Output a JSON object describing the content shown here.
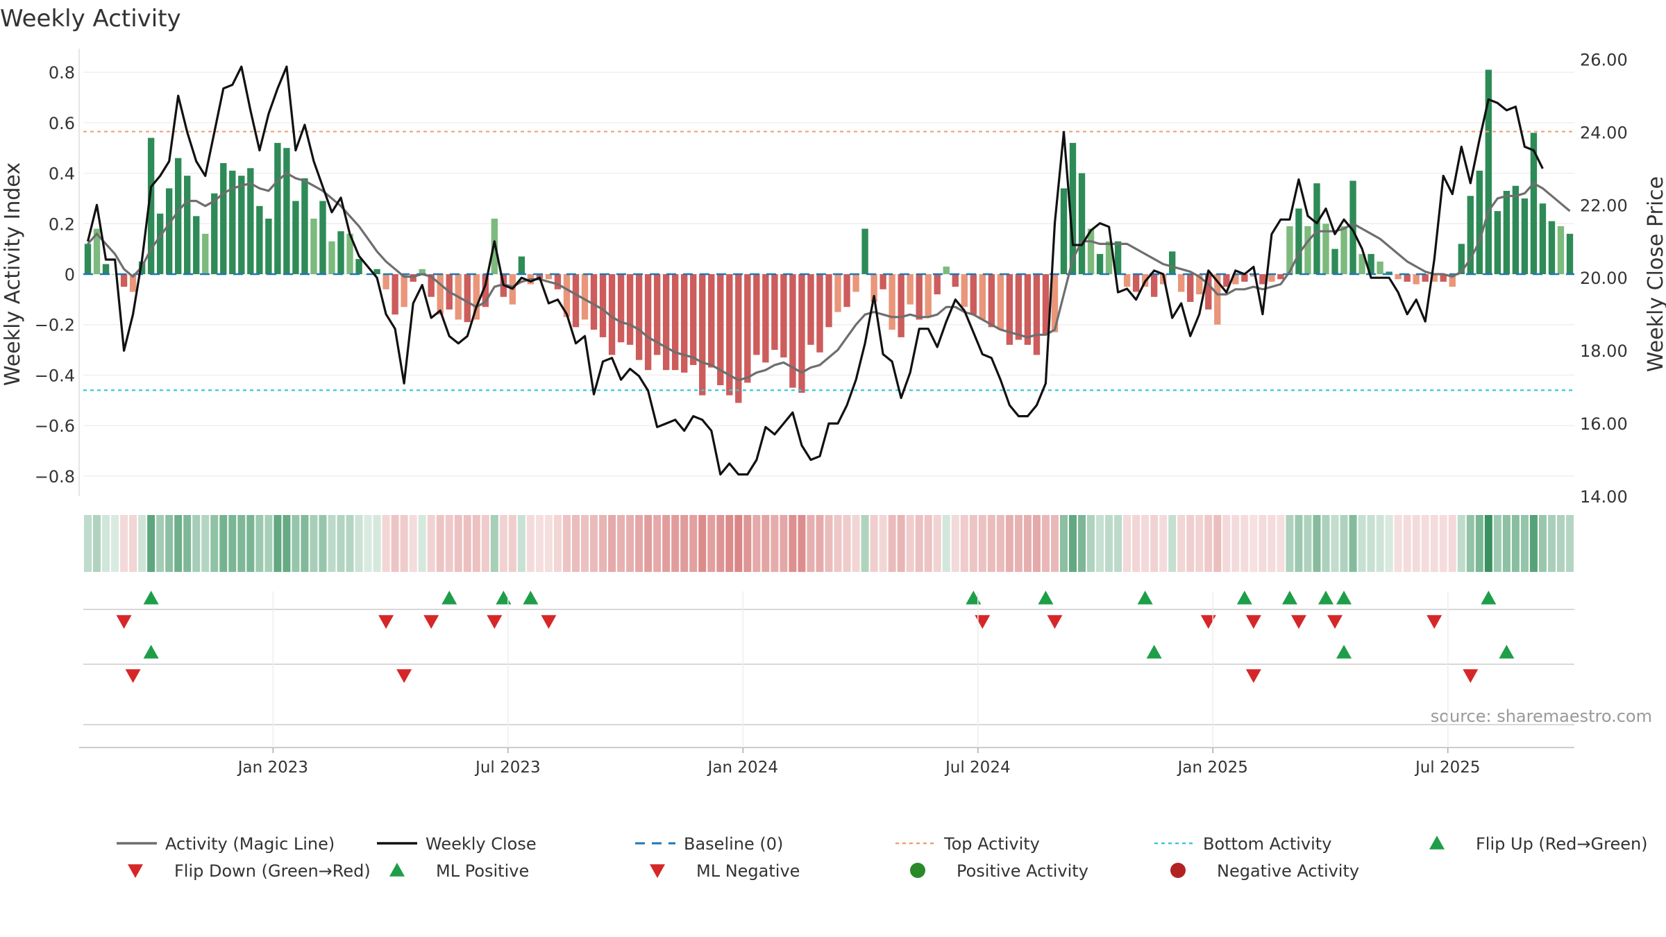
{
  "chart_data": {
    "type": "bar",
    "title": "Weekly Activity",
    "ylabel_left": "Weekly Activity Index",
    "ylabel_right": "Weekly Close Price",
    "ylim_left": [
      -0.88,
      0.88
    ],
    "ylim_right": [
      14,
      26.2
    ],
    "left_ticks": [
      {
        "v": 0.8,
        "label": "0.8"
      },
      {
        "v": 0.6,
        "label": "0.6"
      },
      {
        "v": 0.4,
        "label": "0.4"
      },
      {
        "v": 0.2,
        "label": "0.2"
      },
      {
        "v": 0,
        "label": "0"
      },
      {
        "v": -0.2,
        "label": "−0.2"
      },
      {
        "v": -0.4,
        "label": "−0.4"
      },
      {
        "v": -0.6,
        "label": "−0.6"
      },
      {
        "v": -0.8,
        "label": "−0.8"
      }
    ],
    "right_ticks": [
      {
        "v": 26,
        "label": "26.00"
      },
      {
        "v": 24,
        "label": "24.00"
      },
      {
        "v": 22,
        "label": "22.00"
      },
      {
        "v": 20,
        "label": "20.00"
      },
      {
        "v": 18,
        "label": "18.00"
      },
      {
        "v": 16,
        "label": "16.00"
      },
      {
        "v": 14,
        "label": "14.00"
      }
    ],
    "x_ticks": [
      {
        "week": 21,
        "label": "Jan 2023"
      },
      {
        "week": 47,
        "label": "Jul 2023"
      },
      {
        "week": 73,
        "label": "Jan 2024"
      },
      {
        "week": 99,
        "label": "Jul 2024"
      },
      {
        "week": 125,
        "label": "Jan 2025"
      },
      {
        "week": 151,
        "label": "Jul 2025"
      }
    ],
    "top_activity": 0.565,
    "bottom_activity": -0.46,
    "source": "source: sharemaestro.com",
    "activity": [
      0.12,
      0.18,
      0.04,
      0,
      -0.05,
      -0.07,
      0.05,
      0.54,
      0.24,
      0.34,
      0.46,
      0.39,
      0.23,
      0.16,
      0.32,
      0.44,
      0.41,
      0.39,
      0.42,
      0.27,
      0.22,
      0.52,
      0.5,
      0.29,
      0.38,
      0.22,
      0.29,
      0.13,
      0.17,
      0.16,
      0.06,
      0,
      0.02,
      -0.06,
      -0.16,
      -0.13,
      -0.03,
      0.02,
      -0.09,
      -0.16,
      -0.14,
      -0.18,
      -0.19,
      -0.18,
      -0.13,
      0.22,
      -0.09,
      -0.12,
      0.07,
      -0.04,
      -0.02,
      -0.02,
      -0.06,
      -0.17,
      -0.21,
      -0.18,
      -0.22,
      -0.25,
      -0.32,
      -0.27,
      -0.28,
      -0.34,
      -0.38,
      -0.32,
      -0.38,
      -0.38,
      -0.39,
      -0.36,
      -0.48,
      -0.37,
      -0.44,
      -0.48,
      -0.51,
      -0.43,
      -0.32,
      -0.35,
      -0.3,
      -0.33,
      -0.45,
      -0.47,
      -0.28,
      -0.31,
      -0.21,
      -0.15,
      -0.13,
      -0.07,
      0.18,
      -0.11,
      -0.06,
      -0.22,
      -0.25,
      -0.12,
      -0.18,
      -0.17,
      -0.08,
      0.03,
      -0.05,
      -0.13,
      -0.16,
      -0.18,
      -0.21,
      -0.22,
      -0.28,
      -0.26,
      -0.28,
      -0.32,
      -0.24,
      -0.23,
      0.34,
      0.52,
      0.4,
      0.18,
      0.08,
      0.13,
      0.13,
      -0.05,
      -0.07,
      -0.05,
      -0.09,
      -0.04,
      0.09,
      -0.07,
      -0.11,
      -0.08,
      -0.14,
      -0.2,
      -0.05,
      -0.04,
      -0.03,
      -0.01,
      -0.04,
      -0.03,
      -0.02,
      0.19,
      0.26,
      0.19,
      0.36,
      0.2,
      0.1,
      0.19,
      0.37,
      0.08,
      0.08,
      0.05,
      0.01,
      -0.02,
      -0.03,
      -0.04,
      -0.03,
      -0.03,
      -0.03,
      -0.05,
      0.12,
      0.31,
      0.41,
      0.81,
      0.25,
      0.33,
      0.35,
      0.3,
      0.56,
      0.28,
      0.21,
      0.19,
      0.16
    ],
    "series": [
      {
        "name": "Activity (Magic Line)",
        "values": [
          0.12,
          0.16,
          0.12,
          0.08,
          0.02,
          -0.01,
          0.03,
          0.1,
          0.15,
          0.2,
          0.25,
          0.29,
          0.29,
          0.27,
          0.29,
          0.32,
          0.34,
          0.35,
          0.36,
          0.34,
          0.33,
          0.37,
          0.4,
          0.38,
          0.37,
          0.35,
          0.33,
          0.3,
          0.27,
          0.23,
          0.19,
          0.14,
          0.09,
          0.05,
          0.02,
          -0.01,
          -0.01,
          0,
          -0.01,
          -0.04,
          -0.07,
          -0.09,
          -0.11,
          -0.13,
          -0.11,
          -0.05,
          -0.04,
          -0.05,
          -0.03,
          -0.02,
          -0.02,
          -0.03,
          -0.04,
          -0.06,
          -0.08,
          -0.1,
          -0.12,
          -0.14,
          -0.17,
          -0.19,
          -0.2,
          -0.22,
          -0.25,
          -0.27,
          -0.29,
          -0.31,
          -0.32,
          -0.33,
          -0.35,
          -0.36,
          -0.38,
          -0.4,
          -0.42,
          -0.41,
          -0.39,
          -0.38,
          -0.36,
          -0.35,
          -0.37,
          -0.39,
          -0.37,
          -0.36,
          -0.33,
          -0.3,
          -0.25,
          -0.2,
          -0.16,
          -0.15,
          -0.16,
          -0.17,
          -0.17,
          -0.16,
          -0.17,
          -0.17,
          -0.16,
          -0.13,
          -0.13,
          -0.15,
          -0.16,
          -0.18,
          -0.2,
          -0.22,
          -0.23,
          -0.24,
          -0.25,
          -0.24,
          -0.24,
          -0.22,
          -0.08,
          0.06,
          0.13,
          0.13,
          0.12,
          0.12,
          0.12,
          0.12,
          0.1,
          0.08,
          0.06,
          0.04,
          0.03,
          0.02,
          0.01,
          -0.01,
          -0.04,
          -0.08,
          -0.08,
          -0.06,
          -0.06,
          -0.05,
          -0.06,
          -0.05,
          -0.04,
          0.01,
          0.08,
          0.13,
          0.17,
          0.17,
          0.17,
          0.18,
          0.2,
          0.18,
          0.16,
          0.14,
          0.11,
          0.08,
          0.05,
          0.03,
          0.01,
          0,
          0,
          -0.01,
          0.01,
          0.06,
          0.13,
          0.25,
          0.3,
          0.31,
          0.31,
          0.32,
          0.36,
          0.34,
          0.31,
          0.28,
          0.25
        ]
      },
      {
        "name": "Weekly Close",
        "values": [
          21.0,
          22.0,
          20.5,
          20.5,
          18.0,
          19.0,
          20.5,
          22.5,
          22.8,
          23.2,
          25.0,
          24.0,
          23.2,
          22.8,
          24.0,
          25.2,
          25.3,
          25.8,
          24.6,
          23.5,
          24.5,
          25.2,
          25.8,
          23.5,
          24.2,
          23.2,
          22.5,
          21.8,
          22.2,
          21.2,
          20.6,
          20.3,
          20.0,
          19.0,
          18.6,
          17.1,
          19.3,
          19.8,
          18.9,
          19.1,
          18.4,
          18.2,
          18.4,
          19.2,
          19.8,
          21.0,
          19.8,
          19.7,
          20.0,
          19.9,
          20.0,
          19.3,
          19.4,
          19.0,
          18.2,
          18.4,
          16.8,
          17.7,
          17.8,
          17.2,
          17.5,
          17.3,
          16.9,
          15.9,
          16.0,
          16.1,
          15.8,
          16.2,
          16.1,
          15.8,
          14.6,
          14.9,
          14.6,
          14.6,
          15.0,
          15.9,
          15.7,
          16.0,
          16.3,
          15.4,
          15.0,
          15.1,
          16.0,
          16.0,
          16.5,
          17.2,
          18.2,
          19.5,
          17.9,
          17.7,
          16.7,
          17.4,
          18.6,
          18.6,
          18.1,
          18.8,
          19.4,
          19.1,
          18.5,
          17.9,
          17.8,
          17.2,
          16.5,
          16.2,
          16.2,
          16.5,
          17.1,
          21.5,
          24.0,
          20.9,
          20.9,
          21.3,
          21.5,
          21.4,
          19.6,
          19.7,
          19.4,
          19.9,
          20.2,
          20.1,
          18.9,
          19.3,
          18.4,
          19.0,
          20.2,
          19.9,
          19.6,
          20.2,
          20.1,
          20.3,
          19.0,
          21.2,
          21.6,
          21.6,
          22.7,
          21.7,
          21.5,
          21.9,
          21.2,
          21.6,
          21.3,
          20.8,
          20.0,
          20.0,
          20.0,
          19.6,
          19.0,
          19.4,
          18.8,
          20.5,
          22.8,
          22.3,
          23.6,
          22.6,
          23.8,
          24.9,
          24.8,
          24.6,
          24.7,
          23.6,
          23.5,
          23.0
        ]
      }
    ],
    "flip_up": [
      7,
      40,
      46,
      49,
      98,
      106,
      117,
      128,
      133,
      137,
      139,
      155
    ],
    "flip_down": [
      4,
      33,
      38,
      45,
      51,
      99,
      107,
      124,
      129,
      134,
      138,
      149
    ],
    "ml_positive": [
      7,
      118,
      139,
      157
    ],
    "ml_negative": [
      5,
      35,
      129,
      153
    ],
    "positive_activity": [],
    "negative_activity": [],
    "legend": [
      {
        "label": "Activity (Magic Line)",
        "kind": "line",
        "color": "#6e6e6e"
      },
      {
        "label": "Weekly Close",
        "kind": "line",
        "color": "#111111"
      },
      {
        "label": "Baseline (0)",
        "kind": "dash",
        "color": "#1f77b4"
      },
      {
        "label": "Top Activity",
        "kind": "dot",
        "color": "#f0a070"
      },
      {
        "label": "Bottom Activity",
        "kind": "dot",
        "color": "#3cc8d2"
      },
      {
        "label": "Flip Up (Red→Green)",
        "kind": "tri-up",
        "color": "#1e9e48"
      },
      {
        "label": "Flip Down (Green→Red)",
        "kind": "tri-down",
        "color": "#d62728"
      },
      {
        "label": "ML Positive",
        "kind": "tri-up",
        "color": "#1e9e48"
      },
      {
        "label": "ML Negative",
        "kind": "tri-down",
        "color": "#d62728"
      },
      {
        "label": "Positive Activity",
        "kind": "circle",
        "color": "#2a8a2a"
      },
      {
        "label": "Negative Activity",
        "kind": "circle",
        "color": "#b22222"
      }
    ],
    "colors": {
      "pos_strong": "#2e8b57",
      "pos_weak": "#7dba7d",
      "neg_strong": "#cd5c5c",
      "neg_weak": "#e9967a",
      "magic": "#6e6e6e",
      "close": "#111111",
      "baseline": "#1f77b4",
      "top": "#f0a070",
      "bottom": "#3cc8d2",
      "up": "#1e9e48",
      "down": "#d62728"
    }
  }
}
